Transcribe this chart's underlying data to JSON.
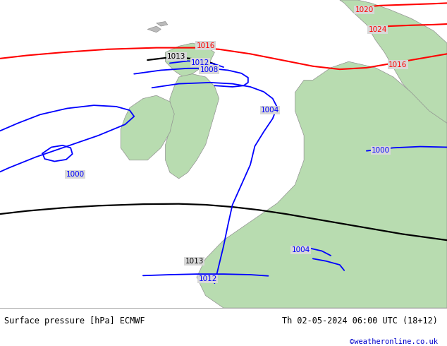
{
  "title_left": "Surface pressure [hPa] ECMWF",
  "title_right": "Th 02-05-2024 06:00 UTC (18+12)",
  "copyright": "©weatheronline.co.uk",
  "bg_color": "#d8d8d8",
  "land_color": "#b8dcb0",
  "footer_bg": "#ffffff",
  "figsize": [
    6.34,
    4.9
  ],
  "dpi": 100,
  "footer_fontsize": 8.5,
  "copyright_fontsize": 7.5,
  "copyright_color": "#0000cc",
  "label_fontsize": 7.5,
  "label_bg": "#d8d8d8"
}
